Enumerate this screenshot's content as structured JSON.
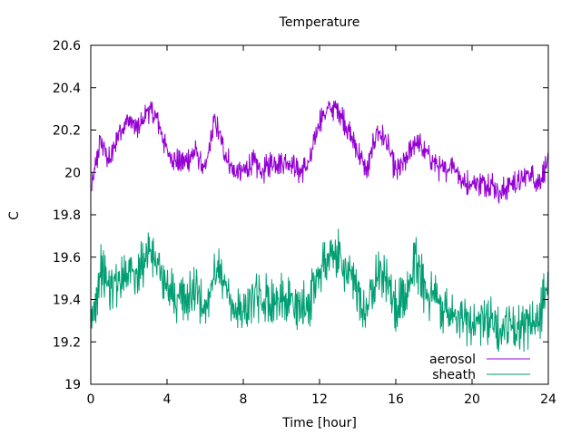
{
  "chart_data": {
    "type": "line",
    "title": "Temperature",
    "xlabel": "Time [hour]",
    "ylabel": "C",
    "xlim": [
      0,
      24
    ],
    "ylim": [
      19,
      20.6
    ],
    "xticks": [
      0,
      4,
      8,
      12,
      16,
      20,
      24
    ],
    "yticks": [
      19,
      19.2,
      19.4,
      19.6,
      19.8,
      20,
      20.2,
      20.4,
      20.6
    ],
    "xtick_labels": [
      "0",
      "4",
      "8",
      "12",
      "16",
      "20",
      "24"
    ],
    "ytick_labels": [
      "19",
      "19.2",
      "19.4",
      "19.6",
      "19.8",
      "20",
      "20.2",
      "20.4",
      "20.6"
    ],
    "grid": false,
    "legend_position": "bottom-right",
    "series": [
      {
        "name": "aerosol",
        "color": "#9400d3",
        "x": [
          0,
          0.5,
          1,
          1.5,
          2,
          2.5,
          3,
          3.5,
          4,
          4.5,
          5,
          5.5,
          6,
          6.5,
          7,
          7.5,
          8,
          8.5,
          9,
          9.5,
          10,
          10.5,
          11,
          11.5,
          12,
          12.5,
          13,
          13.5,
          14,
          14.5,
          15,
          15.5,
          16,
          16.5,
          17,
          17.5,
          18,
          18.5,
          19,
          19.5,
          20,
          20.5,
          21,
          21.5,
          22,
          22.5,
          23,
          23.5,
          24
        ],
        "y": [
          19.9,
          20.15,
          20.05,
          20.2,
          20.25,
          20.2,
          20.3,
          20.25,
          20.1,
          20.05,
          20.05,
          20.1,
          20.0,
          20.25,
          20.1,
          20.0,
          20.0,
          20.05,
          20.0,
          20.05,
          20.05,
          20.05,
          20.0,
          20.05,
          20.25,
          20.3,
          20.3,
          20.2,
          20.1,
          20.0,
          20.2,
          20.15,
          20.0,
          20.05,
          20.15,
          20.1,
          20.05,
          20.0,
          20.05,
          19.95,
          19.95,
          19.95,
          19.95,
          19.9,
          19.95,
          19.95,
          20.0,
          19.95,
          20.05
        ],
        "noise": 0.05
      },
      {
        "name": "sheath",
        "color": "#009e73",
        "x": [
          0,
          0.5,
          1,
          1.5,
          2,
          2.5,
          3,
          3.5,
          4,
          4.5,
          5,
          5.5,
          6,
          6.5,
          7,
          7.5,
          8,
          8.5,
          9,
          9.5,
          10,
          10.5,
          11,
          11.5,
          12,
          12.5,
          13,
          13.5,
          14,
          14.5,
          15,
          15.5,
          16,
          16.5,
          17,
          17.5,
          18,
          18.5,
          19,
          19.5,
          20,
          20.5,
          21,
          21.5,
          22,
          22.5,
          23,
          23.5,
          24
        ],
        "y": [
          19.25,
          19.55,
          19.45,
          19.5,
          19.55,
          19.5,
          19.65,
          19.55,
          19.45,
          19.4,
          19.4,
          19.45,
          19.35,
          19.55,
          19.45,
          19.35,
          19.35,
          19.4,
          19.4,
          19.4,
          19.4,
          19.4,
          19.35,
          19.4,
          19.55,
          19.6,
          19.6,
          19.5,
          19.45,
          19.35,
          19.55,
          19.5,
          19.35,
          19.4,
          19.6,
          19.45,
          19.4,
          19.35,
          19.35,
          19.3,
          19.3,
          19.3,
          19.3,
          19.25,
          19.3,
          19.25,
          19.3,
          19.3,
          19.5
        ],
        "noise": 0.1
      }
    ]
  }
}
